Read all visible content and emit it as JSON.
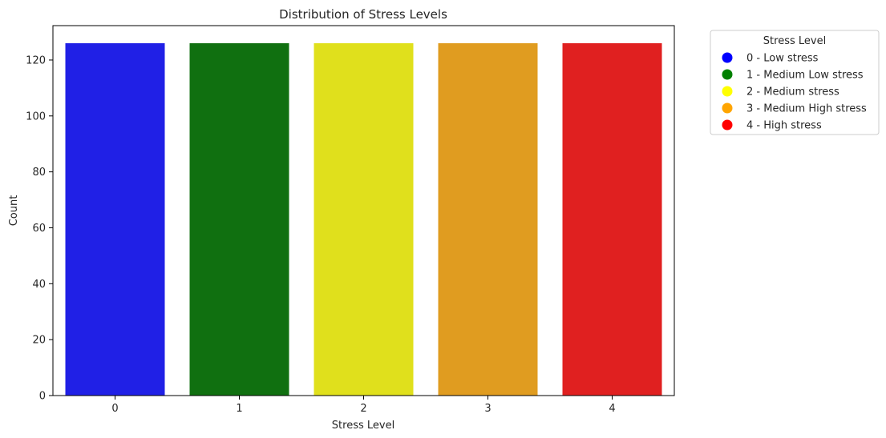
{
  "chart_data": {
    "type": "bar",
    "title": "Distribution of Stress Levels",
    "xlabel": "Stress Level",
    "ylabel": "Count",
    "categories": [
      "0",
      "1",
      "2",
      "3",
      "4"
    ],
    "values": [
      126,
      126,
      126,
      126,
      126
    ],
    "colors": [
      "#2020e6",
      "#107010",
      "#e0e01c",
      "#e09c20",
      "#e02020"
    ],
    "ylim": [
      0,
      132.3
    ],
    "yticks": [
      0,
      20,
      40,
      60,
      80,
      100,
      120
    ],
    "grid": false,
    "legend": {
      "title": "Stress Level",
      "placement": "outside-top-right",
      "entries": [
        {
          "label": "0 - Low stress",
          "color": "#0000ff"
        },
        {
          "label": "1 - Medium Low stress",
          "color": "#008000"
        },
        {
          "label": "2 - Medium stress",
          "color": "#ffff00"
        },
        {
          "label": "3 - Medium High stress",
          "color": "#ffa500"
        },
        {
          "label": "4 - High stress",
          "color": "#ff0000"
        }
      ]
    }
  }
}
